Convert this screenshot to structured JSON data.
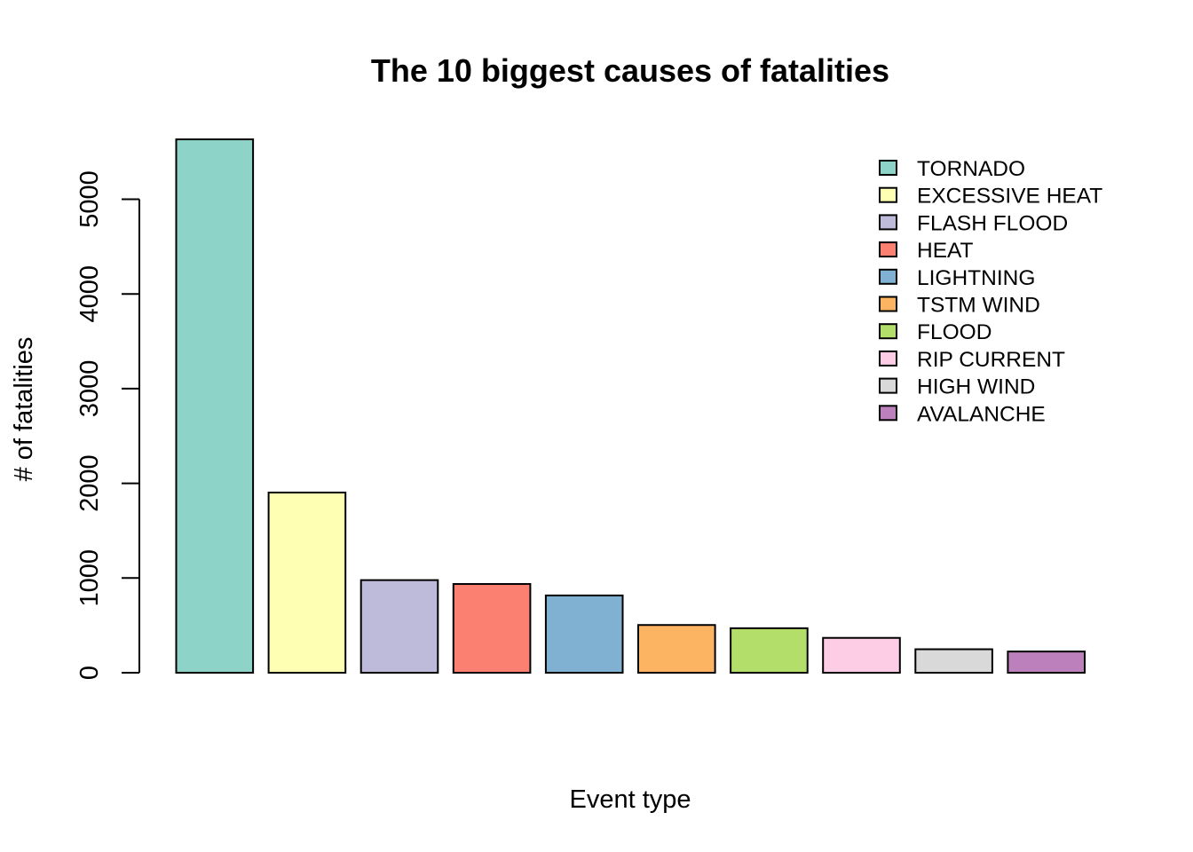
{
  "chart_data": {
    "type": "bar",
    "title": "The 10 biggest causes of fatalities",
    "xlabel": "Event type",
    "ylabel": "# of fatalities",
    "categories": [
      "TORNADO",
      "EXCESSIVE HEAT",
      "FLASH FLOOD",
      "HEAT",
      "LIGHTNING",
      "TSTM WIND",
      "FLOOD",
      "RIP CURRENT",
      "HIGH WIND",
      "AVALANCHE"
    ],
    "values": [
      5633,
      1903,
      978,
      937,
      816,
      504,
      470,
      368,
      248,
      224
    ],
    "colors": [
      "#8DD3C7",
      "#FFFFB3",
      "#BEBADA",
      "#FB8072",
      "#80B1D3",
      "#FDB462",
      "#B3DE69",
      "#FCCDE5",
      "#D9D9D9",
      "#BC80BD"
    ],
    "yticks": [
      0,
      1000,
      2000,
      3000,
      4000,
      5000
    ],
    "ylim": [
      0,
      5633
    ],
    "legend_position": "top-right",
    "grid": false
  }
}
